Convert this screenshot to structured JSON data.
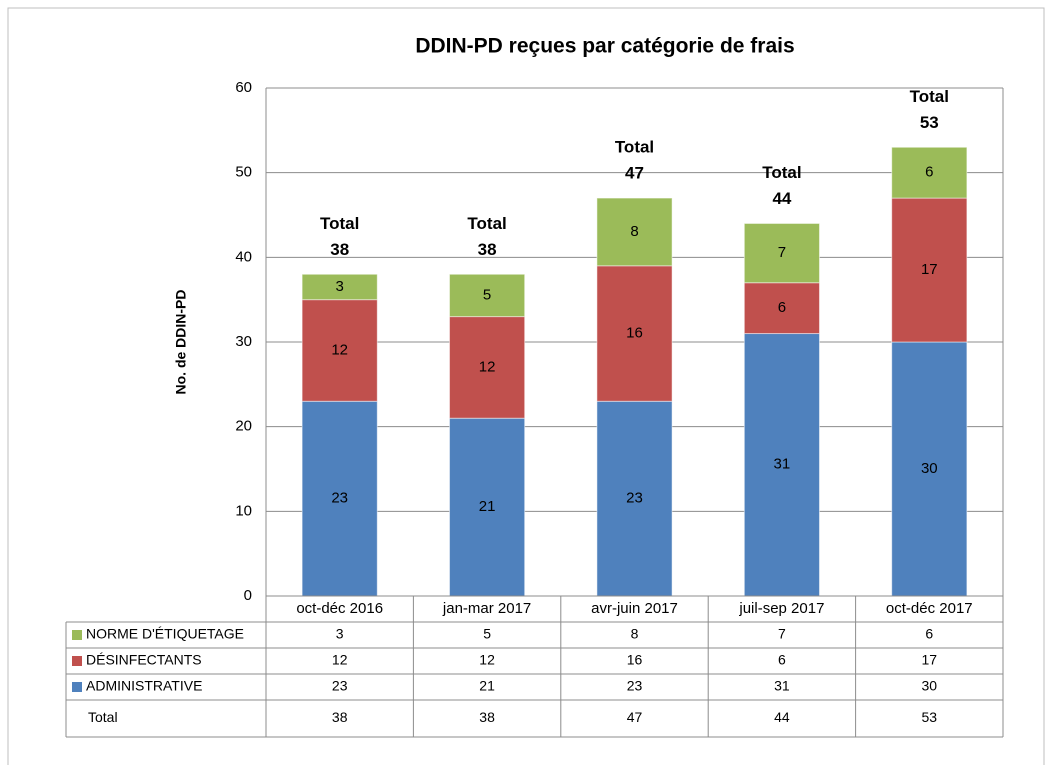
{
  "chart_data": {
    "type": "bar",
    "stacked": true,
    "title": "DDIN-PD reçues par catégorie de frais",
    "ylabel": "No. de DDIN-PD",
    "categories": [
      "oct-déc 2016",
      "jan-mar 2017",
      "avr-juin 2017",
      "juil-sep 2017",
      "oct-déc 2017"
    ],
    "series": [
      {
        "name": "ADMINISTRATIVE",
        "color": "#4f81bd",
        "values": [
          23,
          21,
          23,
          31,
          30
        ]
      },
      {
        "name": "DÉSINFECTANTS",
        "color": "#c0504d",
        "values": [
          12,
          12,
          16,
          6,
          17
        ]
      },
      {
        "name": "NORME D'ÉTIQUETAGE",
        "color": "#9bbb59",
        "values": [
          3,
          5,
          8,
          7,
          6
        ]
      }
    ],
    "totals": {
      "name": "Total",
      "values": [
        38,
        38,
        47,
        44,
        53
      ]
    },
    "ylim": [
      0,
      60
    ],
    "yticks": [
      0,
      10,
      20,
      30,
      40,
      50,
      60
    ],
    "grid": true
  }
}
